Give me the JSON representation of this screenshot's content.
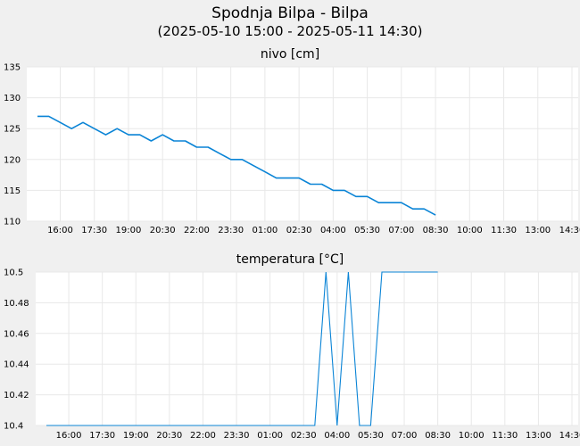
{
  "header": {
    "title": "Spodnja Bilpa - Bilpa",
    "subtitle": "(2025-05-10 15:00 - 2025-05-11 14:30)"
  },
  "chart_data": [
    {
      "type": "line",
      "title": "nivo [cm]",
      "xlabel": "",
      "ylabel": "",
      "x_start": "2025-05-10 15:00",
      "x_end": "2025-05-11 14:30",
      "ylim": [
        110,
        135
      ],
      "y_ticks": [
        "110",
        "115",
        "120",
        "125",
        "130",
        "135"
      ],
      "x_ticks": [
        "16:00",
        "17:30",
        "19:00",
        "20:30",
        "22:00",
        "23:30",
        "01:00",
        "02:30",
        "04:00",
        "05:30",
        "07:00",
        "08:30",
        "10:00",
        "11:30",
        "13:00",
        "14:30"
      ],
      "grid": true,
      "series": [
        {
          "color": "#0a84d6",
          "points": [
            [
              "2025-05-10 15:00",
              127
            ],
            [
              "2025-05-10 15:30",
              127
            ],
            [
              "2025-05-10 16:00",
              126
            ],
            [
              "2025-05-10 16:30",
              125
            ],
            [
              "2025-05-10 17:00",
              126
            ],
            [
              "2025-05-10 17:30",
              125
            ],
            [
              "2025-05-10 18:00",
              124
            ],
            [
              "2025-05-10 18:30",
              125
            ],
            [
              "2025-05-10 19:00",
              124
            ],
            [
              "2025-05-10 19:30",
              124
            ],
            [
              "2025-05-10 20:00",
              123
            ],
            [
              "2025-05-10 20:30",
              124
            ],
            [
              "2025-05-10 21:00",
              123
            ],
            [
              "2025-05-10 21:30",
              123
            ],
            [
              "2025-05-10 22:00",
              122
            ],
            [
              "2025-05-10 22:30",
              122
            ],
            [
              "2025-05-10 23:00",
              121
            ],
            [
              "2025-05-10 23:30",
              120
            ],
            [
              "2025-05-11 00:00",
              120
            ],
            [
              "2025-05-11 00:30",
              119
            ],
            [
              "2025-05-11 01:00",
              118
            ],
            [
              "2025-05-11 01:30",
              117
            ],
            [
              "2025-05-11 02:00",
              117
            ],
            [
              "2025-05-11 02:30",
              117
            ],
            [
              "2025-05-11 03:00",
              116
            ],
            [
              "2025-05-11 03:30",
              116
            ],
            [
              "2025-05-11 04:00",
              115
            ],
            [
              "2025-05-11 04:30",
              115
            ],
            [
              "2025-05-11 05:00",
              114
            ],
            [
              "2025-05-11 05:30",
              114
            ],
            [
              "2025-05-11 06:00",
              113
            ],
            [
              "2025-05-11 06:30",
              113
            ],
            [
              "2025-05-11 07:00",
              113
            ],
            [
              "2025-05-11 07:30",
              112
            ],
            [
              "2025-05-11 08:00",
              112
            ],
            [
              "2025-05-11 08:30",
              111
            ]
          ]
        }
      ]
    },
    {
      "type": "line",
      "title": "temperatura [°C]",
      "xlabel": "",
      "ylabel": "",
      "x_start": "2025-05-10 15:00",
      "x_end": "2025-05-11 14:30",
      "ylim": [
        10.4,
        10.5
      ],
      "y_ticks": [
        "10.4",
        "10.42",
        "10.44",
        "10.46",
        "10.48",
        "10.5"
      ],
      "x_ticks": [
        "16:00",
        "17:30",
        "19:00",
        "20:30",
        "22:00",
        "23:30",
        "01:00",
        "02:30",
        "04:00",
        "05:30",
        "07:00",
        "08:30",
        "10:00",
        "11:30",
        "13:00",
        "14:30"
      ],
      "grid": true,
      "series": [
        {
          "color": "#0a84d6",
          "points": [
            [
              "2025-05-10 15:00",
              10.4
            ],
            [
              "2025-05-11 03:00",
              10.4
            ],
            [
              "2025-05-11 03:30",
              10.5
            ],
            [
              "2025-05-11 04:00",
              10.4
            ],
            [
              "2025-05-11 04:30",
              10.5
            ],
            [
              "2025-05-11 05:00",
              10.4
            ],
            [
              "2025-05-11 05:30",
              10.4
            ],
            [
              "2025-05-11 06:00",
              10.5
            ],
            [
              "2025-05-11 08:30",
              10.5
            ]
          ]
        }
      ]
    }
  ]
}
